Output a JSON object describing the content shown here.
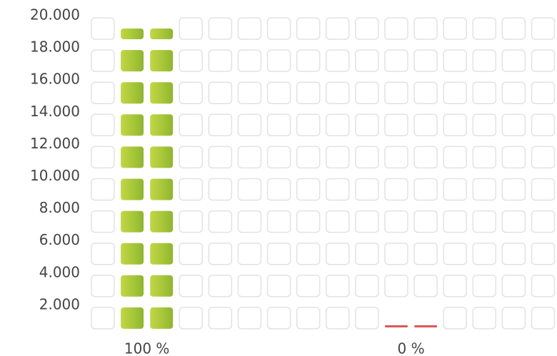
{
  "chart_data": {
    "type": "blockbar",
    "categories": [
      "100 %",
      "0 %"
    ],
    "series": [
      {
        "values": [
          19000,
          0
        ],
        "colors": [
          "#a9c83a",
          "#d9534f"
        ]
      }
    ],
    "ylim": [
      0,
      20000
    ],
    "yticks": [
      {
        "value": 2000,
        "label": "2.000"
      },
      {
        "value": 4000,
        "label": "4.000"
      },
      {
        "value": 6000,
        "label": "6.000"
      },
      {
        "value": 8000,
        "label": "8.000"
      },
      {
        "value": 10000,
        "label": "10.000"
      },
      {
        "value": 12000,
        "label": "12.000"
      },
      {
        "value": 14000,
        "label": "14.000"
      },
      {
        "value": 16000,
        "label": "16.000"
      },
      {
        "value": 18000,
        "label": "18.000"
      },
      {
        "value": 20000,
        "label": "20.000"
      }
    ]
  }
}
